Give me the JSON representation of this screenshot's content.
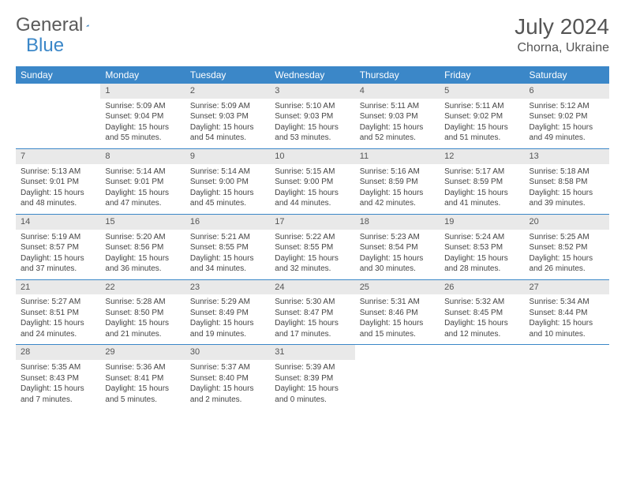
{
  "brand": {
    "part1": "General",
    "part2": "Blue"
  },
  "title": "July 2024",
  "location": "Chorna, Ukraine",
  "colors": {
    "header_bg": "#3b87c8",
    "header_text": "#ffffff",
    "daynum_bg": "#e9e9e9",
    "text": "#444444",
    "row_border": "#3b87c8",
    "page_bg": "#ffffff"
  },
  "fonts": {
    "title_size": 28,
    "location_size": 16,
    "th_size": 12,
    "cell_size": 10
  },
  "weekdays": [
    "Sunday",
    "Monday",
    "Tuesday",
    "Wednesday",
    "Thursday",
    "Friday",
    "Saturday"
  ],
  "first_weekday_index": 1,
  "days": [
    {
      "n": 1,
      "sunrise": "5:09 AM",
      "sunset": "9:04 PM",
      "daylight": "15 hours and 55 minutes."
    },
    {
      "n": 2,
      "sunrise": "5:09 AM",
      "sunset": "9:03 PM",
      "daylight": "15 hours and 54 minutes."
    },
    {
      "n": 3,
      "sunrise": "5:10 AM",
      "sunset": "9:03 PM",
      "daylight": "15 hours and 53 minutes."
    },
    {
      "n": 4,
      "sunrise": "5:11 AM",
      "sunset": "9:03 PM",
      "daylight": "15 hours and 52 minutes."
    },
    {
      "n": 5,
      "sunrise": "5:11 AM",
      "sunset": "9:02 PM",
      "daylight": "15 hours and 51 minutes."
    },
    {
      "n": 6,
      "sunrise": "5:12 AM",
      "sunset": "9:02 PM",
      "daylight": "15 hours and 49 minutes."
    },
    {
      "n": 7,
      "sunrise": "5:13 AM",
      "sunset": "9:01 PM",
      "daylight": "15 hours and 48 minutes."
    },
    {
      "n": 8,
      "sunrise": "5:14 AM",
      "sunset": "9:01 PM",
      "daylight": "15 hours and 47 minutes."
    },
    {
      "n": 9,
      "sunrise": "5:14 AM",
      "sunset": "9:00 PM",
      "daylight": "15 hours and 45 minutes."
    },
    {
      "n": 10,
      "sunrise": "5:15 AM",
      "sunset": "9:00 PM",
      "daylight": "15 hours and 44 minutes."
    },
    {
      "n": 11,
      "sunrise": "5:16 AM",
      "sunset": "8:59 PM",
      "daylight": "15 hours and 42 minutes."
    },
    {
      "n": 12,
      "sunrise": "5:17 AM",
      "sunset": "8:59 PM",
      "daylight": "15 hours and 41 minutes."
    },
    {
      "n": 13,
      "sunrise": "5:18 AM",
      "sunset": "8:58 PM",
      "daylight": "15 hours and 39 minutes."
    },
    {
      "n": 14,
      "sunrise": "5:19 AM",
      "sunset": "8:57 PM",
      "daylight": "15 hours and 37 minutes."
    },
    {
      "n": 15,
      "sunrise": "5:20 AM",
      "sunset": "8:56 PM",
      "daylight": "15 hours and 36 minutes."
    },
    {
      "n": 16,
      "sunrise": "5:21 AM",
      "sunset": "8:55 PM",
      "daylight": "15 hours and 34 minutes."
    },
    {
      "n": 17,
      "sunrise": "5:22 AM",
      "sunset": "8:55 PM",
      "daylight": "15 hours and 32 minutes."
    },
    {
      "n": 18,
      "sunrise": "5:23 AM",
      "sunset": "8:54 PM",
      "daylight": "15 hours and 30 minutes."
    },
    {
      "n": 19,
      "sunrise": "5:24 AM",
      "sunset": "8:53 PM",
      "daylight": "15 hours and 28 minutes."
    },
    {
      "n": 20,
      "sunrise": "5:25 AM",
      "sunset": "8:52 PM",
      "daylight": "15 hours and 26 minutes."
    },
    {
      "n": 21,
      "sunrise": "5:27 AM",
      "sunset": "8:51 PM",
      "daylight": "15 hours and 24 minutes."
    },
    {
      "n": 22,
      "sunrise": "5:28 AM",
      "sunset": "8:50 PM",
      "daylight": "15 hours and 21 minutes."
    },
    {
      "n": 23,
      "sunrise": "5:29 AM",
      "sunset": "8:49 PM",
      "daylight": "15 hours and 19 minutes."
    },
    {
      "n": 24,
      "sunrise": "5:30 AM",
      "sunset": "8:47 PM",
      "daylight": "15 hours and 17 minutes."
    },
    {
      "n": 25,
      "sunrise": "5:31 AM",
      "sunset": "8:46 PM",
      "daylight": "15 hours and 15 minutes."
    },
    {
      "n": 26,
      "sunrise": "5:32 AM",
      "sunset": "8:45 PM",
      "daylight": "15 hours and 12 minutes."
    },
    {
      "n": 27,
      "sunrise": "5:34 AM",
      "sunset": "8:44 PM",
      "daylight": "15 hours and 10 minutes."
    },
    {
      "n": 28,
      "sunrise": "5:35 AM",
      "sunset": "8:43 PM",
      "daylight": "15 hours and 7 minutes."
    },
    {
      "n": 29,
      "sunrise": "5:36 AM",
      "sunset": "8:41 PM",
      "daylight": "15 hours and 5 minutes."
    },
    {
      "n": 30,
      "sunrise": "5:37 AM",
      "sunset": "8:40 PM",
      "daylight": "15 hours and 2 minutes."
    },
    {
      "n": 31,
      "sunrise": "5:39 AM",
      "sunset": "8:39 PM",
      "daylight": "15 hours and 0 minutes."
    }
  ],
  "labels": {
    "sunrise": "Sunrise:",
    "sunset": "Sunset:",
    "daylight": "Daylight:"
  }
}
